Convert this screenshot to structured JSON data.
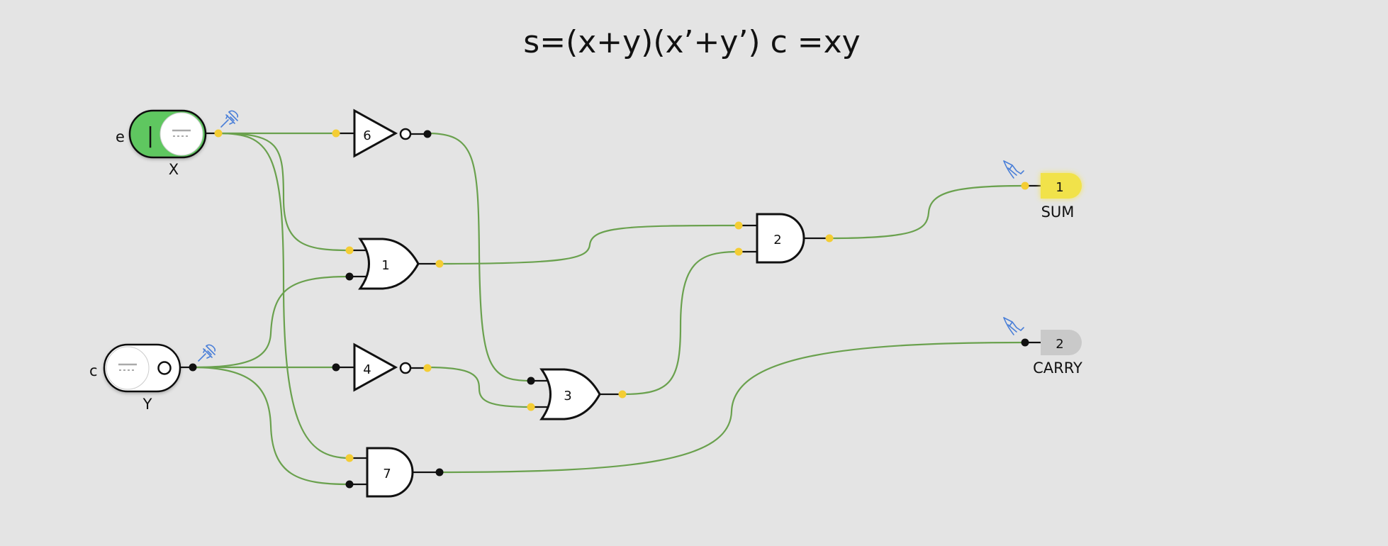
{
  "title": "s=(x+y)(x’+y’) c =xy",
  "inputs": {
    "x": {
      "side_label": "e",
      "name": "X",
      "on_symbol": "|",
      "state": "on"
    },
    "y": {
      "side_label": "c",
      "name": "Y",
      "off_symbol": "o",
      "state": "off"
    }
  },
  "gates": [
    {
      "id": "6",
      "type": "not"
    },
    {
      "id": "1",
      "type": "or"
    },
    {
      "id": "4",
      "type": "not"
    },
    {
      "id": "3",
      "type": "or"
    },
    {
      "id": "7",
      "type": "and"
    },
    {
      "id": "2",
      "type": "and"
    }
  ],
  "outputs": {
    "sum": {
      "id": "1",
      "name": "SUM",
      "state": "on"
    },
    "carry": {
      "id": "2",
      "name": "CARRY",
      "state": "off"
    }
  },
  "colors": {
    "background": "#e4e4e4",
    "wire": "#6aa14e",
    "signal_high": "#f4cd34",
    "signal_low": "#111111",
    "switch_on": "#5fc760",
    "led_on": "#f1e24a",
    "led_off": "#c9c9c9",
    "probe_icon": "#4a7fd8"
  },
  "icons": {
    "probe": "probe-pin-icon",
    "switch_off_dots": "switch-dots-icon"
  }
}
